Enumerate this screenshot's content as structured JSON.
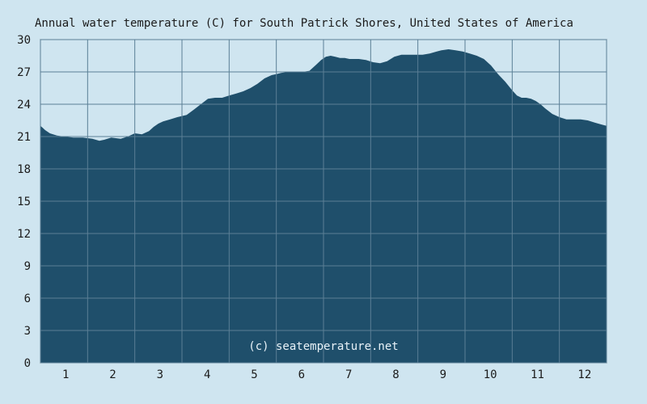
{
  "chart_data": {
    "type": "area",
    "title": "Annual water temperature (C) for South Patrick Shores, United States of America",
    "xlabel": "",
    "ylabel": "",
    "ylim": [
      0,
      30
    ],
    "xlim": [
      0.5,
      12.5
    ],
    "yticks": [
      "0",
      "3",
      "6",
      "9",
      "12",
      "15",
      "18",
      "21",
      "24",
      "27",
      "30"
    ],
    "xticks": [
      "1",
      "2",
      "3",
      "4",
      "5",
      "6",
      "7",
      "8",
      "9",
      "10",
      "11",
      "12"
    ],
    "grid": true,
    "watermark": "(c) seatemperature.net",
    "area_color": "#1f4f6b",
    "background_color": "#cfe5f0",
    "series": [
      {
        "x": [
          0.5,
          0.55,
          0.6,
          0.7,
          0.85,
          1.0,
          1.2,
          1.4,
          1.6,
          1.75,
          1.85,
          2.0,
          2.2,
          2.35,
          2.5,
          2.65,
          2.8,
          2.9,
          3.0,
          3.1,
          3.25,
          3.4,
          3.6,
          3.75,
          3.9,
          4.05,
          4.2,
          4.35,
          4.5,
          4.65,
          4.8,
          4.95,
          5.1,
          5.25,
          5.4,
          5.5,
          5.6,
          5.75,
          5.9,
          6.05,
          6.2,
          6.35,
          6.45,
          6.55,
          6.65,
          6.75,
          6.85,
          6.95,
          7.05,
          7.15,
          7.25,
          7.4,
          7.55,
          7.7,
          7.85,
          8.0,
          8.15,
          8.3,
          8.45,
          8.6,
          8.75,
          8.9,
          9.0,
          9.15,
          9.3,
          9.45,
          9.6,
          9.75,
          9.9,
          10.05,
          10.2,
          10.35,
          10.5,
          10.6,
          10.7,
          10.8,
          10.9,
          11.0,
          11.1,
          11.2,
          11.35,
          11.5,
          11.65,
          11.8,
          11.95,
          12.1,
          12.25,
          12.4,
          12.5
        ],
        "values": [
          22.0,
          21.8,
          21.6,
          21.3,
          21.1,
          21.0,
          20.9,
          20.9,
          20.8,
          20.6,
          20.7,
          20.9,
          20.8,
          21.0,
          21.3,
          21.2,
          21.5,
          21.9,
          22.2,
          22.4,
          22.6,
          22.8,
          23.0,
          23.5,
          24.0,
          24.5,
          24.6,
          24.6,
          24.8,
          25.0,
          25.2,
          25.5,
          25.9,
          26.4,
          26.7,
          26.8,
          26.9,
          27.0,
          27.0,
          27.0,
          27.1,
          27.7,
          28.1,
          28.4,
          28.5,
          28.4,
          28.3,
          28.3,
          28.2,
          28.2,
          28.2,
          28.1,
          27.9,
          27.8,
          28.0,
          28.4,
          28.6,
          28.6,
          28.6,
          28.6,
          28.7,
          28.9,
          29.0,
          29.1,
          29.0,
          28.9,
          28.7,
          28.5,
          28.2,
          27.6,
          26.8,
          26.1,
          25.3,
          24.8,
          24.6,
          24.6,
          24.5,
          24.3,
          24.0,
          23.6,
          23.1,
          22.8,
          22.6,
          22.6,
          22.6,
          22.5,
          22.3,
          22.1,
          22.0
        ]
      }
    ]
  }
}
